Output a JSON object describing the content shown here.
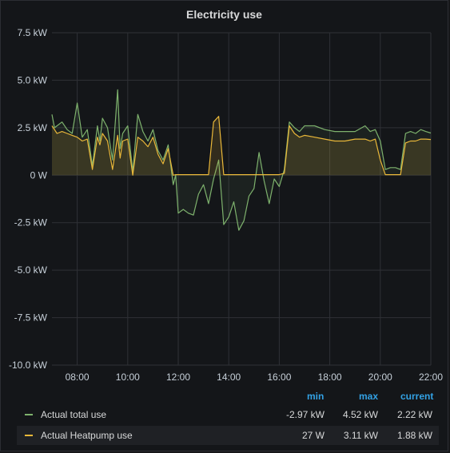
{
  "panel": {
    "title": "Electricity use"
  },
  "legend": {
    "headers": {
      "min": "min",
      "max": "max",
      "current": "current"
    },
    "rows": [
      {
        "name": "Actual total use",
        "color": "#7eb26d",
        "min": "-2.97 kW",
        "max": "4.52 kW",
        "current": "2.22 kW"
      },
      {
        "name": "Actual Heatpump use",
        "color": "#eab839",
        "min": "27 W",
        "max": "3.11 kW",
        "current": "1.88 kW"
      }
    ]
  },
  "chart_data": {
    "type": "line",
    "title": "Electricity use",
    "xlabel": "",
    "ylabel": "",
    "x_range_hours": [
      7.0,
      22.0
    ],
    "ylim": [
      -10,
      7.5
    ],
    "y_ticks": [
      7.5,
      5.0,
      2.5,
      0,
      -2.5,
      -5.0,
      -7.5,
      -10.0
    ],
    "y_tick_labels": [
      "7.5 kW",
      "5.0 kW",
      "2.5 kW",
      "0 W",
      "-2.5 kW",
      "-5.0 kW",
      "-7.5 kW",
      "-10.0 kW"
    ],
    "x_ticks": [
      8,
      10,
      12,
      14,
      16,
      18,
      20,
      22
    ],
    "x_tick_labels": [
      "08:00",
      "10:00",
      "12:00",
      "14:00",
      "16:00",
      "18:00",
      "20:00",
      "22:00"
    ],
    "grid": true,
    "legend_position": "bottom",
    "series": [
      {
        "name": "Actual total use",
        "color": "#7eb26d",
        "x": [
          7.0,
          7.1,
          7.2,
          7.4,
          7.6,
          7.8,
          8.0,
          8.2,
          8.4,
          8.6,
          8.8,
          8.9,
          9.0,
          9.2,
          9.4,
          9.6,
          9.7,
          9.8,
          10.0,
          10.2,
          10.4,
          10.6,
          10.8,
          11.0,
          11.2,
          11.4,
          11.6,
          11.8,
          11.9,
          12.0,
          12.2,
          12.4,
          12.6,
          12.8,
          13.0,
          13.2,
          13.4,
          13.6,
          13.8,
          14.0,
          14.2,
          14.4,
          14.6,
          14.8,
          15.0,
          15.2,
          15.4,
          15.6,
          15.8,
          16.0,
          16.2,
          16.4,
          16.6,
          16.8,
          17.0,
          17.4,
          17.8,
          18.2,
          18.6,
          19.0,
          19.4,
          19.6,
          19.8,
          20.0,
          20.2,
          20.4,
          20.6,
          20.8,
          21.0,
          21.2,
          21.4,
          21.6,
          21.8,
          22.0
        ],
        "y": [
          3.2,
          2.5,
          2.6,
          2.8,
          2.4,
          2.2,
          3.8,
          2.0,
          2.4,
          0.5,
          2.6,
          1.8,
          3.0,
          2.5,
          0.8,
          4.5,
          1.4,
          2.2,
          2.6,
          0.2,
          3.2,
          2.3,
          1.8,
          2.4,
          1.3,
          0.8,
          1.6,
          -0.5,
          0.0,
          -2.0,
          -1.8,
          -2.0,
          -2.1,
          -1.0,
          -0.5,
          -1.5,
          -0.2,
          0.8,
          -2.6,
          -2.2,
          -1.4,
          -2.9,
          -2.4,
          -1.1,
          -0.7,
          1.2,
          -0.3,
          -1.5,
          -0.2,
          -0.6,
          0.3,
          2.8,
          2.5,
          2.3,
          2.6,
          2.6,
          2.4,
          2.3,
          2.3,
          2.3,
          2.6,
          2.3,
          2.4,
          1.8,
          0.3,
          0.4,
          0.4,
          0.3,
          2.2,
          2.3,
          2.2,
          2.4,
          2.3,
          2.22
        ]
      },
      {
        "name": "Actual Heatpump use",
        "color": "#eab839",
        "x": [
          7.0,
          7.1,
          7.2,
          7.4,
          7.6,
          7.8,
          8.0,
          8.2,
          8.4,
          8.6,
          8.8,
          8.9,
          9.0,
          9.2,
          9.4,
          9.6,
          9.7,
          9.8,
          10.0,
          10.2,
          10.4,
          10.6,
          10.8,
          11.0,
          11.2,
          11.4,
          11.6,
          11.8,
          11.9,
          12.0,
          12.2,
          12.4,
          12.6,
          12.8,
          13.0,
          13.2,
          13.4,
          13.6,
          13.8,
          14.0,
          14.2,
          14.4,
          14.6,
          14.8,
          15.0,
          15.2,
          15.4,
          15.6,
          15.8,
          16.0,
          16.2,
          16.4,
          16.6,
          16.8,
          17.0,
          17.4,
          17.8,
          18.2,
          18.6,
          19.0,
          19.4,
          19.6,
          19.8,
          20.0,
          20.2,
          20.4,
          20.6,
          20.8,
          21.0,
          21.2,
          21.4,
          21.6,
          21.8,
          22.0
        ],
        "y": [
          2.6,
          2.4,
          2.2,
          2.3,
          2.2,
          2.1,
          2.0,
          1.8,
          1.9,
          0.3,
          2.0,
          1.6,
          2.2,
          1.8,
          0.3,
          2.1,
          0.9,
          1.8,
          1.9,
          0.0,
          2.0,
          1.8,
          1.5,
          2.0,
          1.1,
          0.6,
          1.4,
          0.0,
          0.03,
          0.03,
          0.03,
          0.03,
          0.03,
          0.03,
          0.03,
          0.03,
          2.8,
          3.1,
          0.03,
          0.03,
          0.03,
          0.03,
          0.03,
          0.03,
          0.03,
          0.03,
          0.03,
          0.03,
          0.03,
          0.03,
          0.1,
          2.6,
          2.2,
          2.0,
          2.1,
          2.0,
          1.9,
          1.8,
          1.8,
          1.9,
          1.9,
          1.8,
          1.9,
          0.8,
          0.03,
          0.03,
          0.03,
          0.03,
          1.7,
          1.8,
          1.8,
          1.9,
          1.9,
          1.88
        ]
      }
    ]
  }
}
